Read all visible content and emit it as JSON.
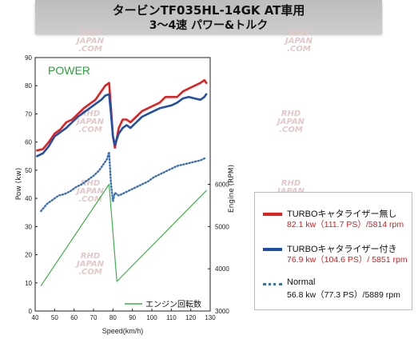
{
  "header": {
    "line1": "タービンTF035HL-14GK AT車用",
    "line2": "3～4速 パワー&トルク"
  },
  "watermark": {
    "line1": "RHD",
    "line2": "JAPAN",
    "line3": ".COM"
  },
  "colors": {
    "power_no_catalyst": "#e32020",
    "power_with_catalyst": "#1f4fa8",
    "power_normal": "#3b6fb6",
    "engine_rpm": "#3cb04a",
    "power_label": "#2e9e3e",
    "legend_value": "#d81e1e"
  },
  "chart_data": {
    "type": "line",
    "panel_label": "POWER",
    "xlabel": "Speed(km/h)",
    "ylabel": "Pow (kw)",
    "ylabel_right": "Engine (RPM)",
    "xlim": [
      40,
      130
    ],
    "ylim": [
      0,
      90
    ],
    "ylim_right": [
      3000,
      9000
    ],
    "x_ticks": [
      40,
      50,
      60,
      70,
      80,
      90,
      100,
      110,
      120,
      130
    ],
    "y_ticks": [
      0,
      10,
      20,
      30,
      40,
      50,
      60,
      70,
      80,
      90
    ],
    "y_right_ticks": [
      3000,
      4000,
      5000,
      6000
    ],
    "grid": false,
    "legend_position": "right",
    "series": [
      {
        "name": "TURBOキャタライザー無し",
        "style": "solid",
        "x": [
          41,
          44,
          47,
          50,
          53,
          56,
          59,
          62,
          65,
          68,
          71,
          74,
          76,
          78,
          79,
          80,
          81,
          83,
          85,
          87,
          89,
          92,
          95,
          98,
          101,
          104,
          107,
          110,
          113,
          116,
          119,
          122,
          125,
          127,
          128
        ],
        "y": [
          57,
          57.5,
          60,
          63,
          64.5,
          67,
          68,
          70,
          72,
          73.5,
          75,
          78,
          80,
          81,
          72,
          62,
          58,
          65,
          68,
          68,
          67,
          69,
          71,
          72,
          73,
          74,
          76,
          76,
          76,
          78,
          79,
          80,
          81,
          82,
          81
        ]
      },
      {
        "name": "TURBOキャタライザー付き",
        "style": "solid",
        "x": [
          41,
          44,
          47,
          50,
          53,
          56,
          59,
          62,
          65,
          68,
          71,
          74,
          76,
          78,
          79,
          80,
          81,
          83,
          85,
          87,
          89,
          92,
          95,
          98,
          101,
          104,
          107,
          110,
          113,
          116,
          119,
          122,
          125,
          127,
          128
        ],
        "y": [
          55,
          56,
          58.5,
          62,
          63.5,
          65,
          67,
          69,
          70.5,
          72,
          73.5,
          75,
          76.5,
          77,
          70,
          62,
          59,
          63,
          65,
          66,
          65,
          67,
          69,
          70,
          71,
          72,
          72.5,
          73,
          74,
          75.5,
          76,
          75.5,
          75,
          76,
          77
        ]
      },
      {
        "name": "Normal",
        "style": "dotted",
        "x": [
          43,
          46,
          49,
          52,
          55,
          58,
          61,
          64,
          67,
          70,
          73,
          75,
          77,
          78,
          79,
          80,
          81,
          83,
          86,
          89,
          92,
          95,
          98,
          101,
          104,
          107,
          110,
          113,
          116,
          119,
          122,
          125,
          128
        ],
        "y": [
          35.5,
          38,
          39.5,
          41,
          41.5,
          42.5,
          44,
          45,
          46.5,
          48,
          50,
          52,
          54,
          56.5,
          45,
          39,
          42,
          41,
          42,
          43,
          44,
          45,
          46,
          47.5,
          48.5,
          49.5,
          50.5,
          51.5,
          52,
          52.5,
          53,
          53.5,
          54.5
        ]
      },
      {
        "name": "エンジン回転数",
        "style": "solid",
        "axis": "right",
        "x": [
          43,
          78,
          82,
          128
        ],
        "y": [
          3600,
          6000,
          3700,
          5850
        ]
      }
    ]
  },
  "legend_entries": [
    {
      "name": "TURBOキャタライザー無し",
      "value": "82.1 kw（111.7 PS）/5814 rpm"
    },
    {
      "name": "TURBOキャタライザー付き",
      "value": "76.9 kw（104.6 PS）/ 5851 rpm"
    },
    {
      "name": "Normal",
      "value": "56.8 kw（77.3 PS）/5889 rpm"
    }
  ]
}
